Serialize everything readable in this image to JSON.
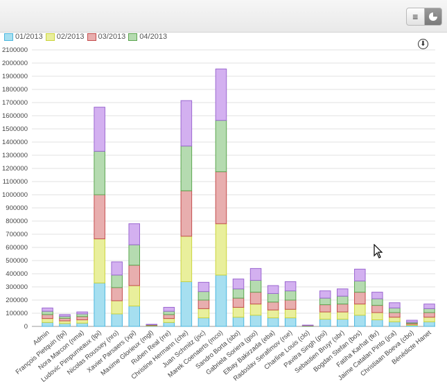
{
  "toolbar": {
    "list_icon": "list-icon",
    "chart_icon": "pie-chart-icon"
  },
  "download_icon": "download-icon",
  "colors": {
    "s1": {
      "fill": "#a6dff0",
      "stroke": "#4bb6de"
    },
    "s2": {
      "fill": "#e9ef9c",
      "stroke": "#cbd43c"
    },
    "s3": {
      "fill": "#e8aeae",
      "stroke": "#c44d4d"
    },
    "s4": {
      "fill": "#b5dbb0",
      "stroke": "#5ba54f"
    },
    "s5": {
      "fill": "#d3b0f0",
      "stroke": "#9b68d0"
    }
  },
  "chart_data": {
    "type": "bar",
    "stacked": true,
    "ylim": [
      0,
      2100000
    ],
    "yticks": [
      0,
      100000,
      200000,
      300000,
      400000,
      500000,
      600000,
      700000,
      800000,
      900000,
      1000000,
      1100000,
      1200000,
      1300000,
      1400000,
      1500000,
      1600000,
      1700000,
      1800000,
      1900000,
      2000000,
      2100000
    ],
    "ytick_labels": [
      "0",
      "100000",
      "200000",
      "300000",
      "400000",
      "500000",
      "600000",
      "700000",
      "800000",
      "900000",
      "1000000",
      "1100000",
      "1200000",
      "1300000",
      "1400000",
      "1500000",
      "1600000",
      "1700000",
      "1800000",
      "1900000",
      "2000000",
      "2100000"
    ],
    "legend_position": "top-left",
    "categories": [
      "Admin",
      "François Pietquin (fpi)",
      "Nora Marcon (nma)",
      "Ludovic Pimpurneaux (lpi)",
      "Nicolas Roussey (nro)",
      "Xavier Parsaers (xpi)",
      "Maxime Glorieux (mgl)",
      "Ruben Real (rre)",
      "Christine Hermann (che)",
      "Juan Schmitz (jsc)",
      "Marek Coenaerts (mco)",
      "Sandro Borta (sbo)",
      "Gabriela Soriera (gso)",
      "Elbay Bakirzada (eba)",
      "Radoslav Serafimov (rse)",
      "Charline Louis (clo)",
      "Pavitra Singh (psi)",
      "Sebastien Bruyr (sbr)",
      "Bogdan Stefan (bos)",
      "Fatiha Karhat (fkr)",
      "Jaime Catalan Pinto (jca)",
      "Christiaan Boeva (cbo)",
      "Bénédicte Hanet"
    ],
    "series": [
      {
        "name": "01/2013",
        "values": [
          30000,
          22000,
          25000,
          330000,
          95000,
          155000,
          3000,
          30000,
          340000,
          65000,
          390000,
          70000,
          85000,
          65000,
          65000,
          2000,
          55000,
          55000,
          85000,
          50000,
          35000,
          8000,
          35000
        ]
      },
      {
        "name": "02/2013",
        "values": [
          30000,
          20000,
          25000,
          335000,
          100000,
          155000,
          3000,
          30000,
          345000,
          70000,
          390000,
          75000,
          85000,
          60000,
          65000,
          2000,
          55000,
          55000,
          85000,
          55000,
          35000,
          8000,
          35000
        ]
      },
      {
        "name": "03/2013",
        "values": [
          30000,
          20000,
          25000,
          335000,
          100000,
          155000,
          4000,
          30000,
          345000,
          65000,
          395000,
          70000,
          90000,
          60000,
          70000,
          2000,
          55000,
          60000,
          90000,
          55000,
          35000,
          8000,
          35000
        ]
      },
      {
        "name": "04/2013",
        "values": [
          25000,
          15000,
          20000,
          330000,
          95000,
          155000,
          3000,
          25000,
          340000,
          65000,
          390000,
          70000,
          90000,
          65000,
          70000,
          2000,
          50000,
          60000,
          85000,
          50000,
          35000,
          8000,
          30000
        ]
      },
      {
        "name": "",
        "values": [
          25000,
          13000,
          15000,
          335000,
          100000,
          160000,
          3000,
          30000,
          345000,
          70000,
          390000,
          75000,
          90000,
          60000,
          70000,
          2000,
          55000,
          55000,
          90000,
          50000,
          40000,
          15000,
          35000
        ]
      }
    ]
  }
}
